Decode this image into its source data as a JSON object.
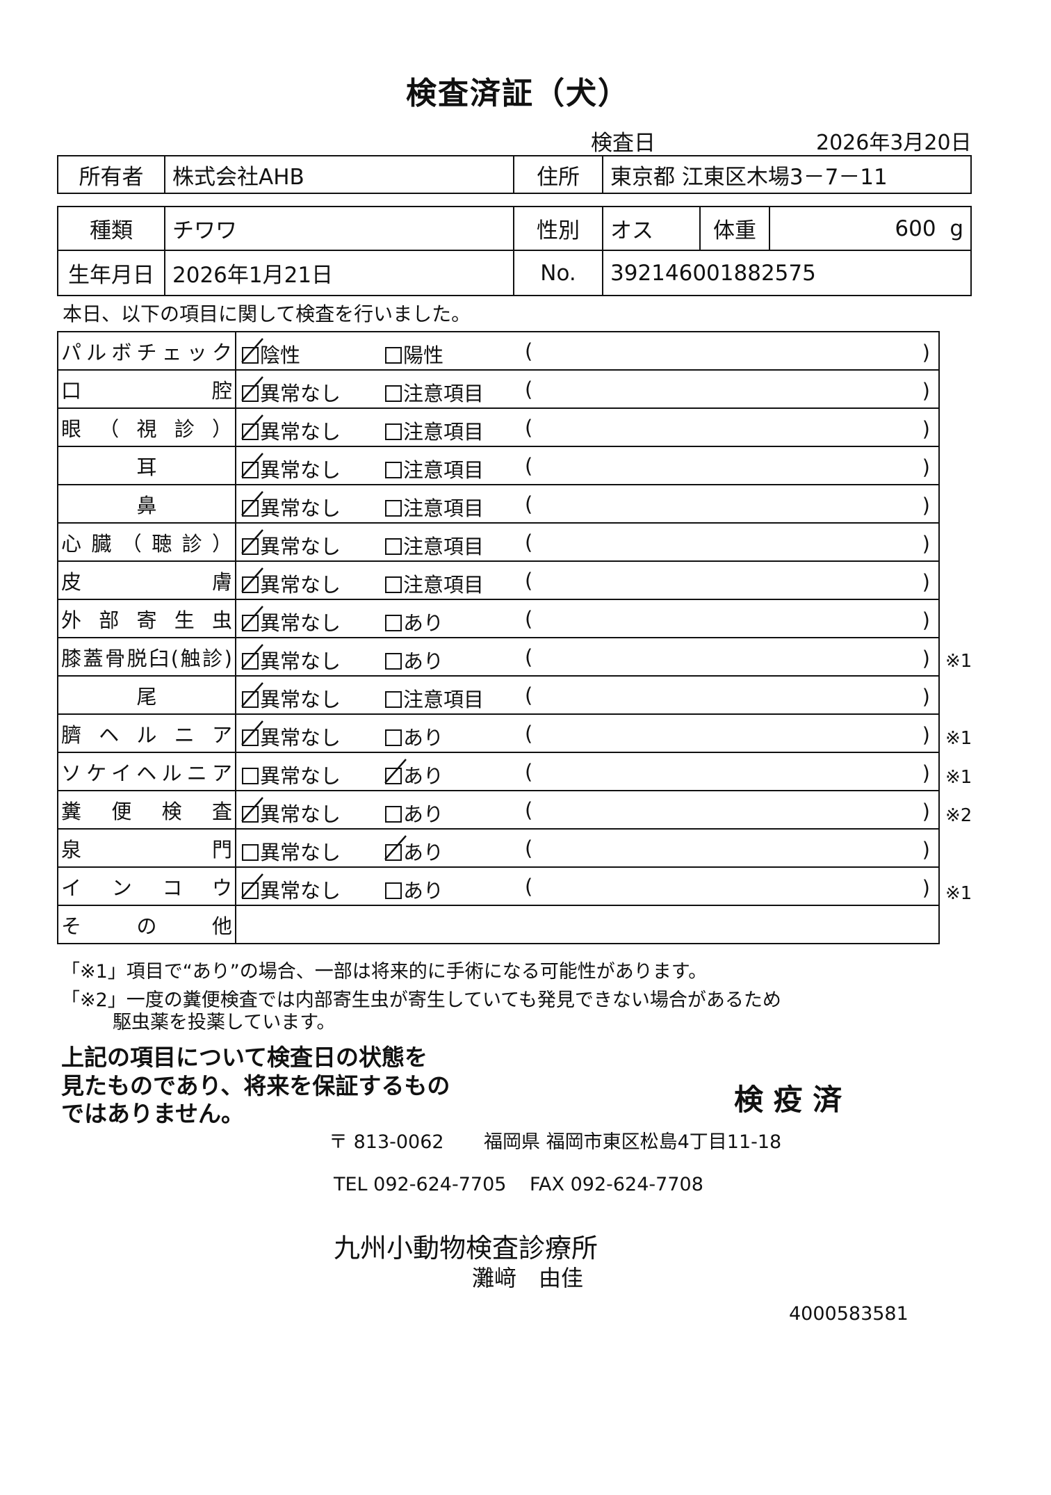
{
  "title": "検査済証（犬）",
  "exam_date_label": "検査日",
  "exam_date": "2026年3月20日",
  "owner": {
    "label": "所有者",
    "value": "株式会社AHB",
    "address_label": "住所",
    "address": "東京都 江東区木場3－7－11"
  },
  "animal": {
    "breed_label": "種類",
    "breed": "チワワ",
    "sex_label": "性別",
    "sex": "オス",
    "weight_label": "体重",
    "weight": "600",
    "weight_unit": "g",
    "birth_label": "生年月日",
    "birth": "2026年1月21日",
    "no_label": "No.",
    "no": "392146001882575"
  },
  "intro": "本日、以下の項目に関して検査を行いました。",
  "paren_open": "(",
  "paren_close": ")",
  "checks": [
    {
      "label": "パルボチェック",
      "opt1": "陰性",
      "opt2": "陽性",
      "checked": 1,
      "mark": ""
    },
    {
      "label": "口腔",
      "opt1": "異常なし",
      "opt2": "注意項目",
      "checked": 1,
      "mark": ""
    },
    {
      "label": "眼（視診）",
      "opt1": "異常なし",
      "opt2": "注意項目",
      "checked": 1,
      "mark": ""
    },
    {
      "label": "耳",
      "opt1": "異常なし",
      "opt2": "注意項目",
      "checked": 1,
      "mark": ""
    },
    {
      "label": "鼻",
      "opt1": "異常なし",
      "opt2": "注意項目",
      "checked": 1,
      "mark": ""
    },
    {
      "label": "心臓（聴診）",
      "opt1": "異常なし",
      "opt2": "注意項目",
      "checked": 1,
      "mark": ""
    },
    {
      "label": "皮膚",
      "opt1": "異常なし",
      "opt2": "注意項目",
      "checked": 1,
      "mark": ""
    },
    {
      "label": "外部寄生虫",
      "opt1": "異常なし",
      "opt2": "あり",
      "checked": 1,
      "mark": ""
    },
    {
      "label": "膝蓋骨脱臼(触診)",
      "opt1": "異常なし",
      "opt2": "あり",
      "checked": 1,
      "mark": "※1"
    },
    {
      "label": "尾",
      "opt1": "異常なし",
      "opt2": "注意項目",
      "checked": 1,
      "mark": ""
    },
    {
      "label": "臍ヘルニア",
      "opt1": "異常なし",
      "opt2": "あり",
      "checked": 1,
      "mark": "※1"
    },
    {
      "label": "ソケイヘルニア",
      "opt1": "異常なし",
      "opt2": "あり",
      "checked": 2,
      "mark": "※1"
    },
    {
      "label": "糞便検査",
      "opt1": "異常なし",
      "opt2": "あり",
      "checked": 1,
      "mark": "※2"
    },
    {
      "label": "泉門",
      "opt1": "異常なし",
      "opt2": "あり",
      "checked": 2,
      "mark": ""
    },
    {
      "label": "インコウ",
      "opt1": "異常なし",
      "opt2": "あり",
      "checked": 1,
      "mark": "※1"
    }
  ],
  "other_label": "その他",
  "notes": {
    "n1": "「※1」項目で“あり”の場合、一部は将来的に手術になる可能性があります。",
    "n2a": "「※2」一度の糞便検査では内部寄生虫が寄生していても発見できない場合があるため",
    "n2b": "駆虫薬を投薬しています。"
  },
  "disclaimer": [
    "上記の項目について検査日の状態を",
    "見たものであり、将来を保証するもの",
    "ではありません。"
  ],
  "stamp": "検 疫 済",
  "clinic": {
    "postal": "〒 813-0062",
    "address": "福岡県 福岡市東区松島4丁目11-18",
    "tel": "TEL 092-624-7705",
    "fax": "FAX 092-624-7708",
    "name": "九州小動物検査診療所",
    "person": "灘﨑　由佳"
  },
  "doc_id": "4000583581"
}
